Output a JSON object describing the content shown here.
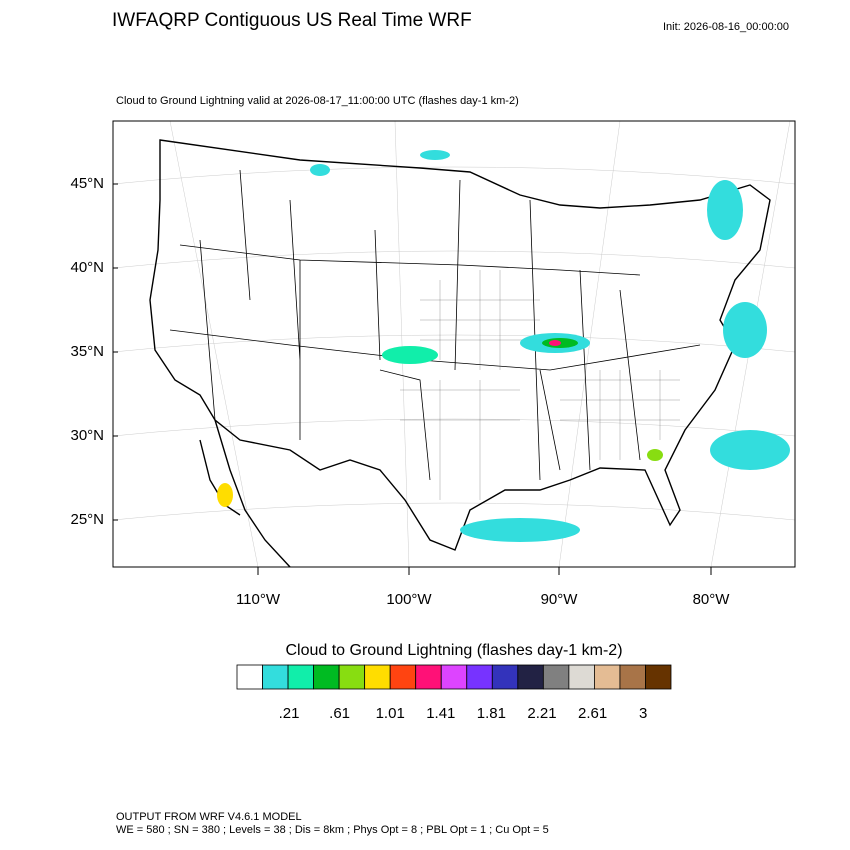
{
  "header": {
    "title": "IWFAQRP Contiguous US Real Time WRF",
    "init": "Init: 2026-08-16_00:00:00",
    "subtitle": "Cloud to Ground Lightning valid at 2026-08-17_11:00:00 UTC   (flashes day-1 km-2)"
  },
  "map": {
    "lat_labels": [
      "45°N",
      "40°N",
      "35°N",
      "30°N",
      "25°N"
    ],
    "lon_labels": [
      "110°W",
      "100°W",
      "90°W",
      "80°W"
    ]
  },
  "colorbar": {
    "title": "Cloud to Ground Lightning  (flashes day-1 km-2)",
    "colors": [
      "#ffffff",
      "#33dddd",
      "#11eeaa",
      "#00bb22",
      "#88dd11",
      "#ffdd00",
      "#ff4411",
      "#ff1177",
      "#dd44ff",
      "#7733ff",
      "#3333bb",
      "#222244",
      "#808080",
      "#dddad4",
      "#e4bc94",
      "#a87448",
      "#663300"
    ],
    "labels": [
      ".21",
      ".61",
      "1.01",
      "1.41",
      "1.81",
      "2.21",
      "2.61",
      "3"
    ]
  },
  "footer": {
    "line1": "OUTPUT FROM WRF V4.6.1 MODEL",
    "line2": "WE = 580 ; SN = 380 ; Levels = 38 ; Dis = 8km ; Phys Opt = 8 ; PBL Opt = 1 ; Cu Opt = 5"
  }
}
